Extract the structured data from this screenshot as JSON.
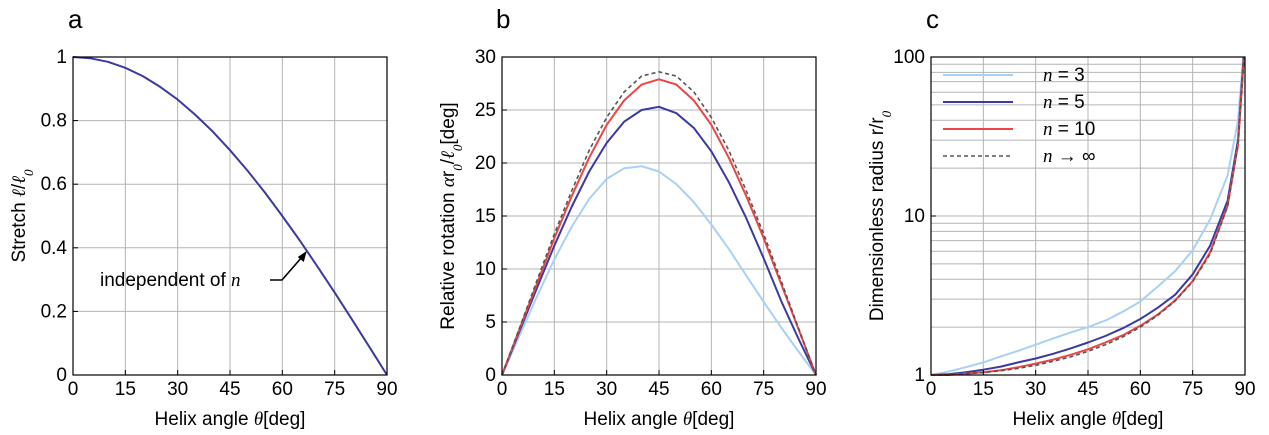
{
  "figure": {
    "panel_labels": [
      "a",
      "b",
      "c"
    ]
  },
  "chart_data": [
    {
      "type": "line",
      "panel": "a",
      "xlabel": "Helix angle  θ[deg]",
      "ylabel": "Stretch ℓ/ℓ₀",
      "xlim": [
        0,
        90
      ],
      "ylim": [
        0,
        1
      ],
      "xticks": [
        "0",
        "15",
        "30",
        "45",
        "60",
        "75",
        "90"
      ],
      "yticks": [
        "0",
        "0.2",
        "0.4",
        "0.6",
        "0.8",
        "1"
      ],
      "grid": true,
      "annotation": "independent of n",
      "annotation_points_to": {
        "x": 67,
        "y": 0.39
      },
      "series": [
        {
          "color": "#3a3aa0",
          "style": "solid",
          "x": [
            0,
            5,
            10,
            15,
            20,
            25,
            30,
            35,
            40,
            45,
            50,
            55,
            60,
            65,
            70,
            75,
            80,
            85,
            90
          ],
          "y": [
            1.0,
            0.996,
            0.985,
            0.966,
            0.94,
            0.906,
            0.866,
            0.819,
            0.766,
            0.707,
            0.643,
            0.574,
            0.5,
            0.423,
            0.342,
            0.259,
            0.174,
            0.087,
            0.0
          ]
        }
      ]
    },
    {
      "type": "line",
      "panel": "b",
      "xlabel": "Helix angle  θ[deg]",
      "ylabel": "Relative rotation  αr₀/ℓ₀[deg]",
      "xlim": [
        0,
        90
      ],
      "ylim": [
        0,
        30
      ],
      "xticks": [
        "0",
        "15",
        "30",
        "45",
        "60",
        "75",
        "90"
      ],
      "yticks": [
        "0",
        "5",
        "10",
        "15",
        "20",
        "25",
        "30"
      ],
      "grid": true,
      "series": [
        {
          "name": "n = 3",
          "color": "#a9d0f5",
          "style": "solid",
          "x": [
            0,
            5,
            10,
            15,
            20,
            25,
            30,
            35,
            40,
            45,
            50,
            55,
            60,
            65,
            70,
            75,
            80,
            85,
            90
          ],
          "y": [
            0,
            3.7,
            7.4,
            10.9,
            14.0,
            16.6,
            18.5,
            19.5,
            19.7,
            19.2,
            18.0,
            16.3,
            14.2,
            11.9,
            9.4,
            6.9,
            4.5,
            2.2,
            0
          ]
        },
        {
          "name": "n = 5",
          "color": "#3a3aa0",
          "style": "solid",
          "x": [
            0,
            5,
            10,
            15,
            20,
            25,
            30,
            35,
            40,
            45,
            50,
            55,
            60,
            65,
            70,
            75,
            80,
            85,
            90
          ],
          "y": [
            0,
            4.1,
            8.2,
            12.2,
            15.9,
            19.2,
            21.9,
            23.9,
            25.0,
            25.3,
            24.7,
            23.3,
            21.1,
            18.2,
            14.8,
            11.0,
            7.0,
            3.4,
            0
          ]
        },
        {
          "name": "n = 10",
          "color": "#ee4444",
          "style": "solid",
          "x": [
            0,
            5,
            10,
            15,
            20,
            25,
            30,
            35,
            40,
            45,
            50,
            55,
            60,
            65,
            70,
            75,
            80,
            85,
            90
          ],
          "y": [
            0,
            4.3,
            8.6,
            12.9,
            16.9,
            20.5,
            23.6,
            25.9,
            27.4,
            27.9,
            27.4,
            25.9,
            23.6,
            20.5,
            16.9,
            12.9,
            8.6,
            4.3,
            0
          ]
        },
        {
          "name": "n → ∞",
          "color": "#555555",
          "style": "dashed",
          "x": [
            0,
            5,
            10,
            15,
            20,
            25,
            30,
            35,
            40,
            45,
            50,
            55,
            60,
            65,
            70,
            75,
            80,
            85,
            90
          ],
          "y": [
            0,
            4.4,
            8.9,
            13.3,
            17.4,
            21.2,
            24.3,
            26.7,
            28.2,
            28.6,
            28.2,
            26.7,
            24.3,
            21.2,
            17.4,
            13.3,
            8.9,
            4.4,
            0
          ]
        }
      ]
    },
    {
      "type": "line",
      "panel": "c",
      "xlabel": "Helix angle  θ[deg]",
      "ylabel": "Dimensionless radius r/r₀",
      "xlim": [
        0,
        90
      ],
      "ylim": [
        1,
        100
      ],
      "yscale": "log",
      "xticks": [
        "0",
        "15",
        "30",
        "45",
        "60",
        "75",
        "90"
      ],
      "yticks": [
        "1",
        "10",
        "100"
      ],
      "grid": true,
      "legend_position": "upper-left",
      "series": [
        {
          "name": "n = 3",
          "color": "#a9d0f5",
          "style": "solid",
          "x": [
            0,
            5,
            10,
            15,
            20,
            25,
            30,
            35,
            40,
            45,
            50,
            55,
            60,
            65,
            70,
            75,
            80,
            85,
            88,
            89.5
          ],
          "y": [
            1.0,
            1.05,
            1.12,
            1.2,
            1.31,
            1.42,
            1.55,
            1.7,
            1.85,
            2.0,
            2.2,
            2.5,
            2.9,
            3.6,
            4.5,
            6.1,
            9.5,
            18,
            40,
            100
          ]
        },
        {
          "name": "n = 5",
          "color": "#3a3aa0",
          "style": "solid",
          "x": [
            0,
            5,
            10,
            15,
            20,
            25,
            30,
            35,
            40,
            45,
            50,
            55,
            60,
            65,
            70,
            75,
            80,
            85,
            88,
            89.6
          ],
          "y": [
            1.0,
            1.01,
            1.04,
            1.08,
            1.13,
            1.2,
            1.27,
            1.36,
            1.47,
            1.6,
            1.76,
            1.97,
            2.25,
            2.65,
            3.2,
            4.3,
            6.5,
            12.5,
            30,
            100
          ]
        },
        {
          "name": "n = 10",
          "color": "#ee4444",
          "style": "solid",
          "x": [
            0,
            5,
            10,
            15,
            20,
            25,
            30,
            35,
            40,
            45,
            50,
            55,
            60,
            65,
            70,
            75,
            80,
            85,
            88,
            89.7
          ],
          "y": [
            1.0,
            1.0,
            1.02,
            1.04,
            1.07,
            1.12,
            1.18,
            1.25,
            1.34,
            1.45,
            1.6,
            1.78,
            2.04,
            2.4,
            2.95,
            3.9,
            5.9,
            11.6,
            28,
            100
          ]
        },
        {
          "name": "n → ∞",
          "color": "#555555",
          "style": "dashed",
          "x": [
            0,
            5,
            10,
            15,
            20,
            25,
            30,
            35,
            40,
            45,
            50,
            55,
            60,
            65,
            70,
            75,
            80,
            85,
            88,
            89.7
          ],
          "y": [
            1.0,
            1.0,
            1.02,
            1.035,
            1.065,
            1.1,
            1.15,
            1.22,
            1.3,
            1.41,
            1.55,
            1.74,
            2.0,
            2.37,
            2.92,
            3.86,
            5.76,
            11.5,
            28,
            100
          ]
        }
      ]
    }
  ]
}
